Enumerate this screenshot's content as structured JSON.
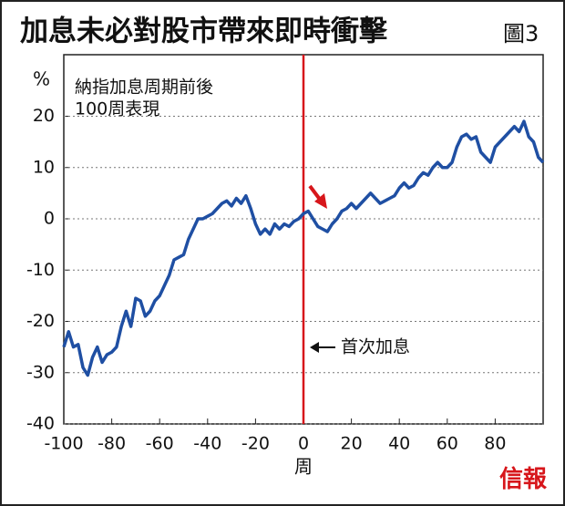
{
  "chart_data": {
    "type": "line",
    "title": "加息未必對股市帶來即時衝擊",
    "figure_label": "圖3",
    "y_unit": "%",
    "x_label": "周",
    "annotation_lines": [
      "納指加息周期前後",
      "100周表現"
    ],
    "event_label": "首次加息",
    "event_x": 0,
    "event_color": "#d7161b",
    "source": "信報",
    "x": [
      -100,
      -98,
      -96,
      -94,
      -92,
      -90,
      -88,
      -86,
      -84,
      -82,
      -80,
      -78,
      -76,
      -74,
      -72,
      -70,
      -68,
      -66,
      -64,
      -62,
      -60,
      -58,
      -56,
      -54,
      -52,
      -50,
      -48,
      -46,
      -44,
      -42,
      -40,
      -38,
      -36,
      -34,
      -32,
      -30,
      -28,
      -26,
      -24,
      -22,
      -20,
      -18,
      -16,
      -14,
      -12,
      -10,
      -8,
      -6,
      -4,
      -2,
      0,
      2,
      4,
      6,
      8,
      10,
      12,
      14,
      16,
      18,
      20,
      22,
      24,
      26,
      28,
      30,
      32,
      34,
      36,
      38,
      40,
      42,
      44,
      46,
      48,
      50,
      52,
      54,
      56,
      58,
      60,
      62,
      64,
      66,
      68,
      70,
      72,
      74,
      76,
      78,
      80,
      82,
      84,
      86,
      88,
      90,
      92,
      94,
      96,
      98,
      100
    ],
    "series": [
      {
        "color": "#1f4fa3",
        "values": [
          -25,
          -22,
          -25,
          -24.5,
          -29,
          -30.5,
          -27,
          -25,
          -28,
          -26.5,
          -26,
          -25,
          -21,
          -18,
          -21,
          -15.5,
          -16,
          -19,
          -18,
          -16,
          -15,
          -13,
          -11,
          -8,
          -7.5,
          -7,
          -4,
          -2,
          0,
          0,
          0.5,
          1,
          2,
          3,
          3.5,
          2.5,
          4,
          3,
          4.5,
          2,
          -1,
          -3,
          -2,
          -3,
          -1,
          -2,
          -1,
          -1.5,
          -0.5,
          0,
          1,
          1.5,
          0,
          -1.5,
          -2,
          -2.5,
          -1,
          0,
          1.5,
          2,
          3,
          2,
          3,
          4,
          5,
          4,
          3,
          3.5,
          4,
          4.5,
          6,
          7,
          6,
          6.5,
          8,
          9,
          8.5,
          10,
          11,
          10,
          10,
          11,
          14,
          16,
          16.5,
          15.5,
          16,
          13,
          12,
          11,
          14,
          15,
          16,
          17,
          18,
          17,
          19,
          16,
          15,
          12,
          11
        ]
      }
    ],
    "xlim": [
      -100,
      100
    ],
    "ylim": [
      -40,
      32
    ],
    "xticks": [
      -100,
      -80,
      -60,
      -40,
      -20,
      0,
      20,
      40,
      60,
      80
    ],
    "yticks": [
      -40,
      -30,
      -20,
      -10,
      0,
      10,
      20
    ],
    "grid": true
  }
}
